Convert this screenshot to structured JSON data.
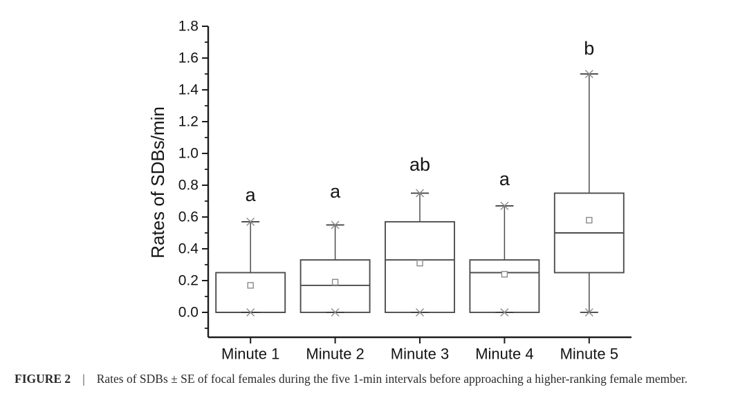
{
  "figure": {
    "caption_label": "FIGURE 2",
    "caption_separator": "|",
    "caption_text": "Rates of SDBs ± SE of focal females during the five 1-min intervals before approaching a higher-ranking female member."
  },
  "chart_data": {
    "type": "box",
    "title": "",
    "xlabel": "",
    "ylabel": "Rates of SDBs/min",
    "categories": [
      "Minute 1",
      "Minute 2",
      "Minute 3",
      "Minute 4",
      "Minute 5"
    ],
    "y_axis": {
      "min": 0.0,
      "max": 1.8,
      "major_tick_step": 0.2,
      "minor_tick_step": 0.1,
      "tick_labels": [
        "0.0",
        "0.2",
        "0.4",
        "0.6",
        "0.8",
        "1.0",
        "1.2",
        "1.4",
        "1.6",
        "1.8"
      ]
    },
    "grid": "off",
    "legend": "none",
    "boxes": [
      {
        "category": "Minute 1",
        "q1": 0.0,
        "median": 0.0,
        "q3": 0.25,
        "mean": 0.17,
        "whisker_low": 0.0,
        "whisker_high": 0.57,
        "sig_letter": "a",
        "sig_letter_y": 0.74
      },
      {
        "category": "Minute 2",
        "q1": 0.0,
        "median": 0.17,
        "q3": 0.33,
        "mean": 0.19,
        "whisker_low": 0.0,
        "whisker_high": 0.55,
        "sig_letter": "a",
        "sig_letter_y": 0.76
      },
      {
        "category": "Minute 3",
        "q1": 0.0,
        "median": 0.33,
        "q3": 0.57,
        "mean": 0.31,
        "whisker_low": 0.0,
        "whisker_high": 0.75,
        "sig_letter": "ab",
        "sig_letter_y": 0.93
      },
      {
        "category": "Minute 4",
        "q1": 0.0,
        "median": 0.25,
        "q3": 0.33,
        "mean": 0.24,
        "whisker_low": 0.0,
        "whisker_high": 0.67,
        "sig_letter": "a",
        "sig_letter_y": 0.84
      },
      {
        "category": "Minute 5",
        "q1": 0.25,
        "median": 0.5,
        "q3": 0.75,
        "mean": 0.58,
        "whisker_low": 0.0,
        "whisker_high": 1.5,
        "sig_letter": "b",
        "sig_letter_y": 1.66
      }
    ],
    "marker_styles": {
      "mean_marker": "open-square",
      "whisker_end_marker": "x-cross-with-cap"
    },
    "colors": {
      "axis": "#1c1c1c",
      "box_stroke": "#4d4d4d",
      "marker": "#8a8a8a",
      "cap": "#3a3a3a",
      "text": "#141414",
      "background": "#ffffff"
    }
  }
}
